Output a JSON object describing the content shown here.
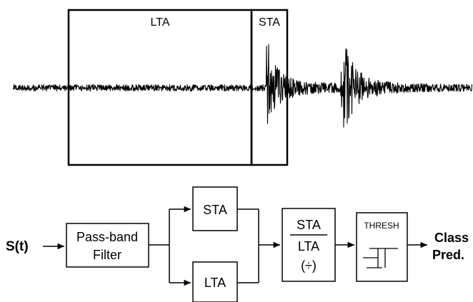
{
  "waveform": {
    "window_labels": {
      "long": "LTA",
      "short": "STA"
    }
  },
  "pipeline": {
    "input": "S(t)",
    "filter": {
      "line1": "Pass-band",
      "line2": "Filter"
    },
    "sta": "STA",
    "lta": "LTA",
    "ratio": {
      "numerator": "STA",
      "denominator": "LTA",
      "op": "(÷)"
    },
    "threshold": "THRESH",
    "output": {
      "line1": "Class",
      "line2": "Pred."
    }
  },
  "colors": {
    "stroke": "#000000",
    "background": "#ffffff"
  }
}
